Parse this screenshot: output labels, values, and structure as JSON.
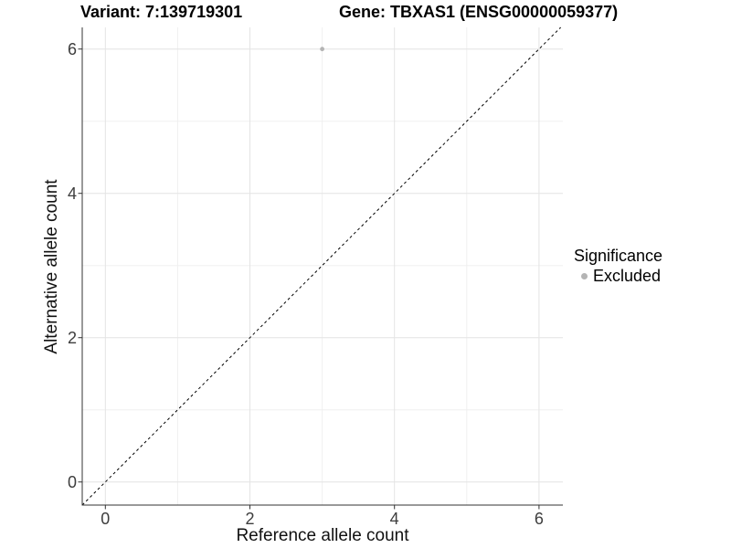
{
  "chart_data": {
    "type": "scatter",
    "title_left": "Variant: 7:139719301",
    "title_right": "Gene: TBXAS1 (ENSG00000059377)",
    "xlabel": "Reference allele count",
    "ylabel": "Alternative allele count",
    "x_ticks": [
      0,
      2,
      4,
      6
    ],
    "y_ticks": [
      0,
      2,
      4,
      6
    ],
    "x_minor_ticks": [
      1,
      3,
      5
    ],
    "y_minor_ticks": [
      1,
      3,
      5
    ],
    "x_domain": [
      -0.32,
      6.33
    ],
    "y_domain": [
      -0.32,
      6.3
    ],
    "points": [
      {
        "x": 3,
        "y": 6,
        "series": "Excluded",
        "color": "#b4b4b4",
        "radius": 2.4
      }
    ],
    "reference_line": {
      "slope": 1,
      "intercept": 0,
      "style": "dashed",
      "color": "#000000"
    },
    "legend": {
      "title": "Significance",
      "position": "right",
      "items": [
        {
          "label": "Excluded",
          "color": "#b4b4b4"
        }
      ]
    },
    "grid": {
      "major_color": "#e4e4e4",
      "minor_color": "#f0f0f0",
      "background": "#ffffff"
    },
    "axis_color": "#333333"
  }
}
